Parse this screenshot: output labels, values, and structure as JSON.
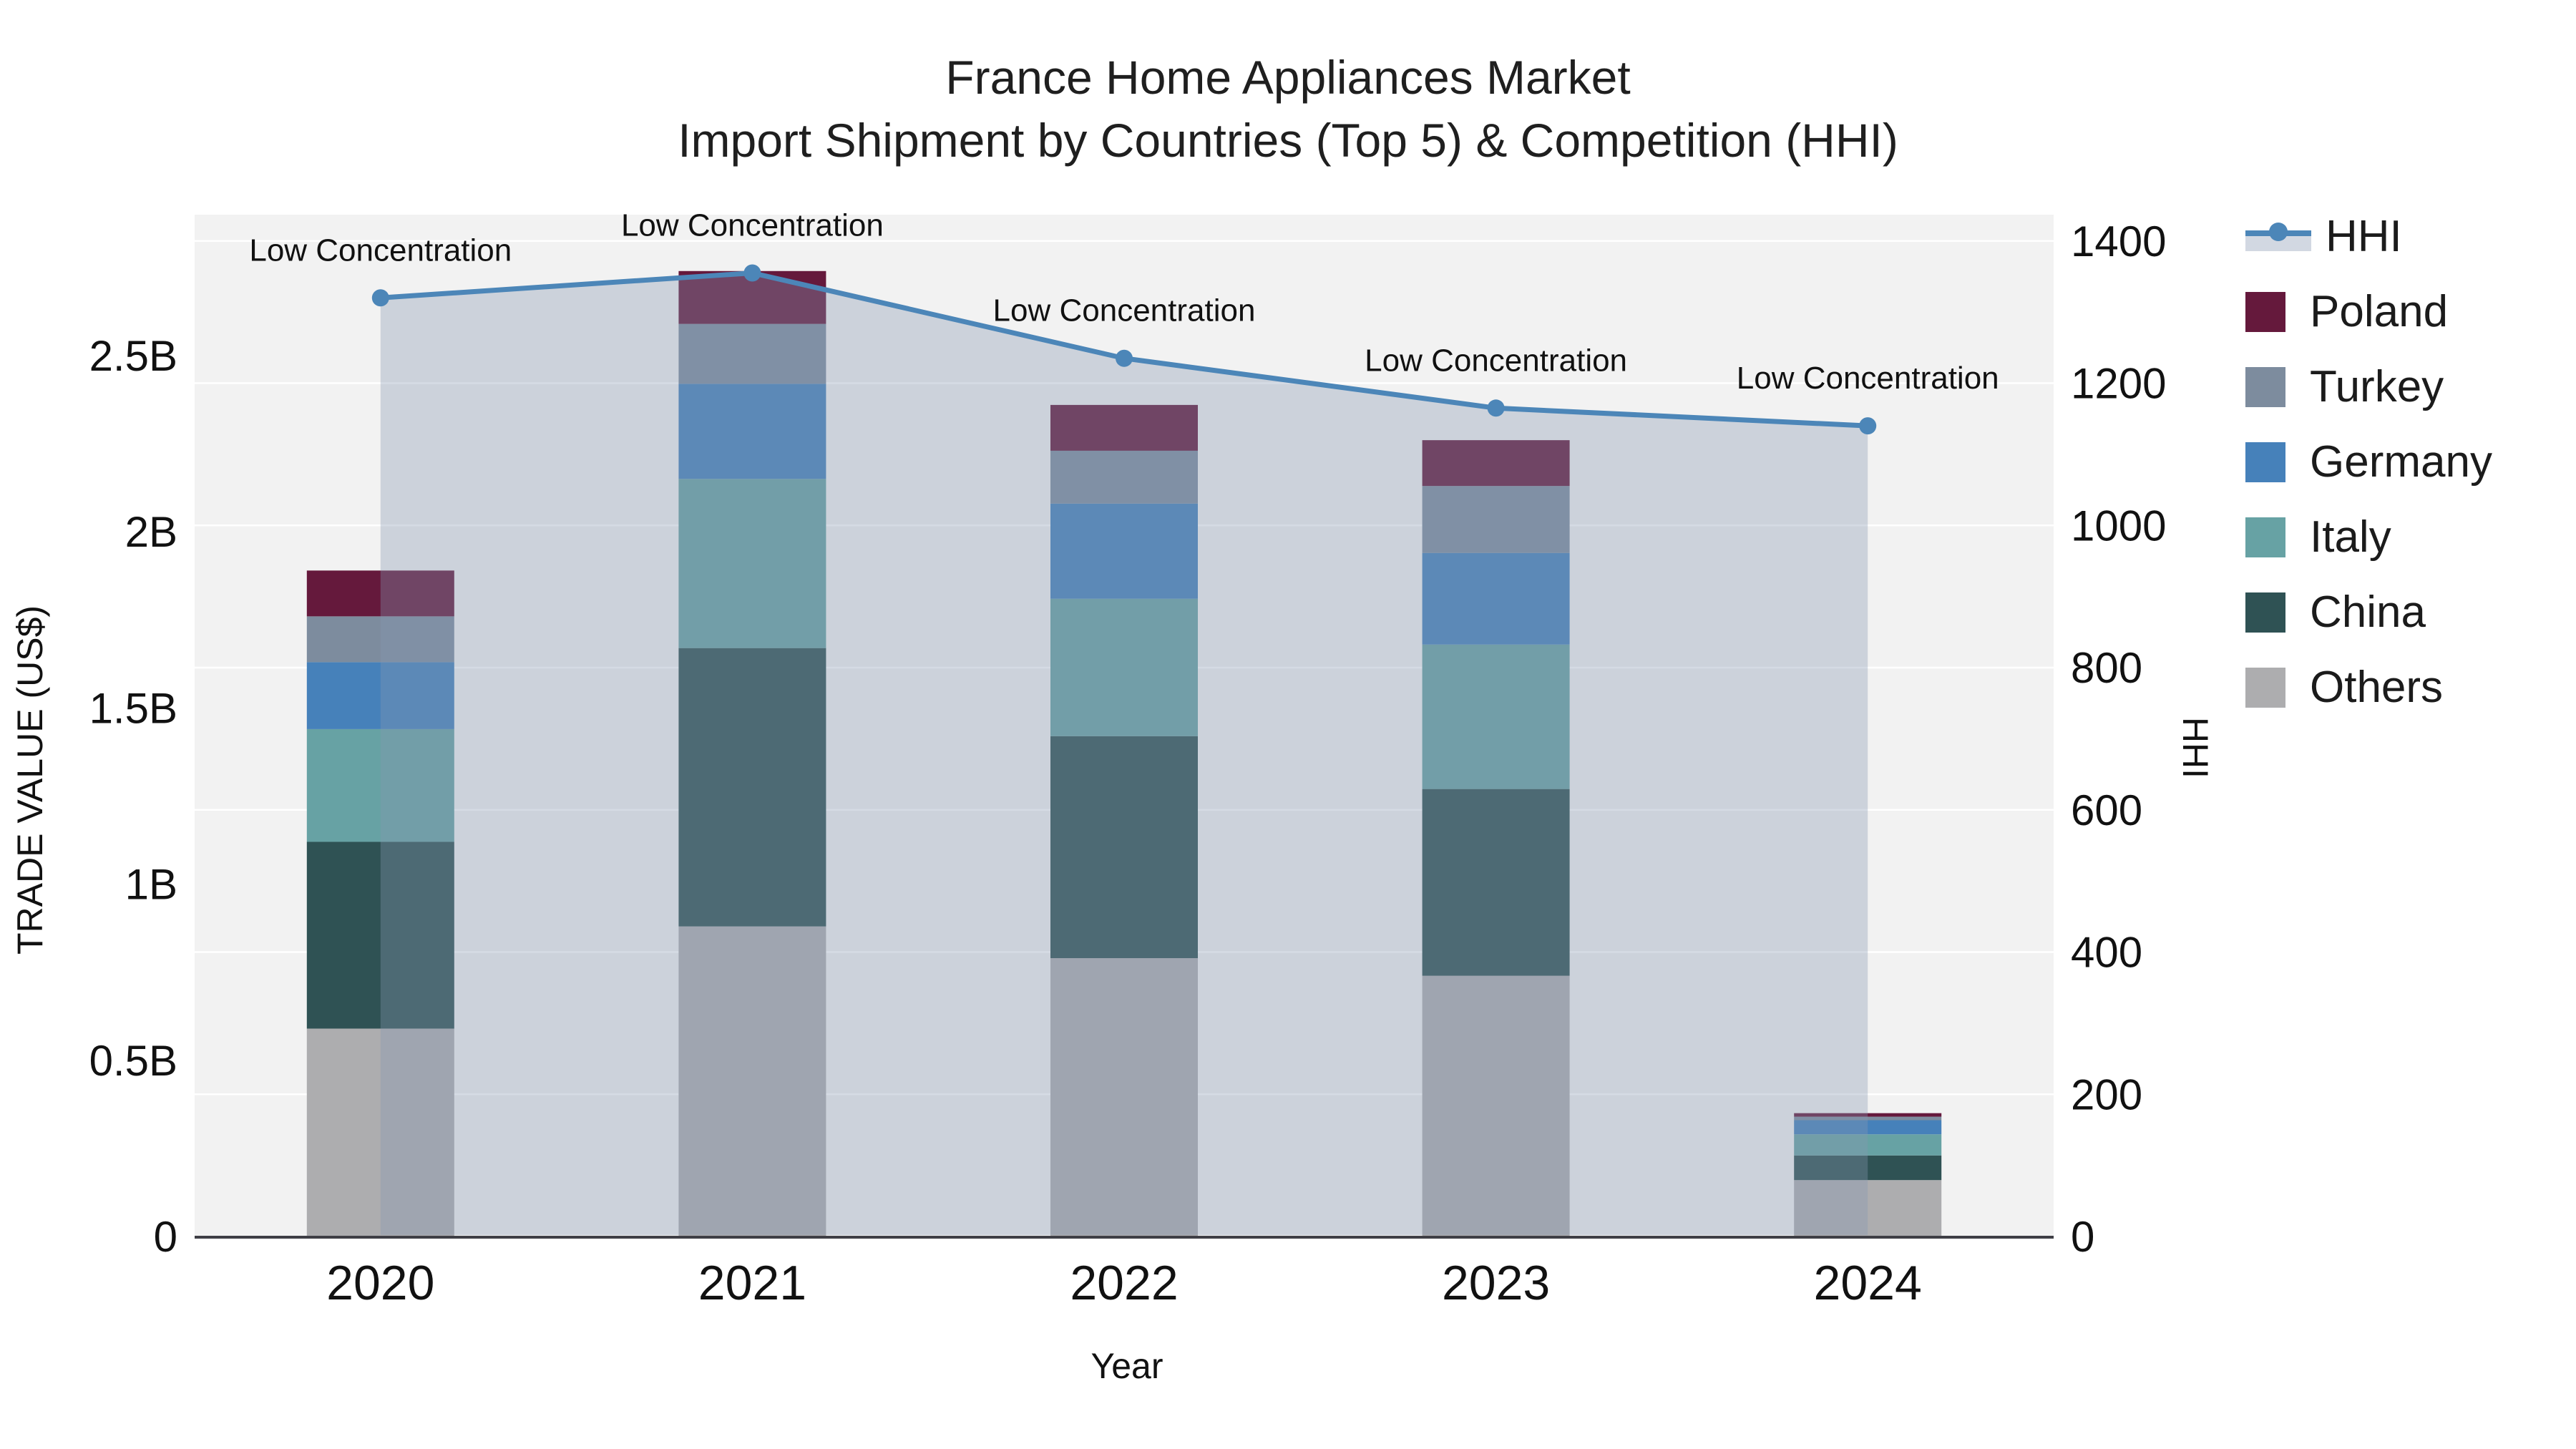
{
  "title": {
    "line1": "France Home Appliances Market",
    "line2": "Import Shipment by Countries (Top 5) & Competition (HHI)"
  },
  "axes": {
    "left": {
      "title": "TRADE VALUE (US$)",
      "range": [
        0,
        2.9
      ],
      "ticks": [
        {
          "v": 0,
          "label": "0"
        },
        {
          "v": 0.5,
          "label": "0.5B"
        },
        {
          "v": 1,
          "label": "1B"
        },
        {
          "v": 1.5,
          "label": "1.5B"
        },
        {
          "v": 2,
          "label": "2B"
        },
        {
          "v": 2.5,
          "label": "2.5B"
        }
      ]
    },
    "right": {
      "title": "HHI",
      "range": [
        0,
        1437
      ],
      "ticks": [
        {
          "v": 0,
          "label": "0"
        },
        {
          "v": 200,
          "label": "200"
        },
        {
          "v": 400,
          "label": "400"
        },
        {
          "v": 600,
          "label": "600"
        },
        {
          "v": 800,
          "label": "800"
        },
        {
          "v": 1000,
          "label": "1000"
        },
        {
          "v": 1200,
          "label": "1200"
        },
        {
          "v": 1400,
          "label": "1400"
        }
      ]
    },
    "x": {
      "title": "Year",
      "categories": [
        "2020",
        "2021",
        "2022",
        "2023",
        "2024"
      ]
    }
  },
  "legend": {
    "items": [
      {
        "label": "HHI",
        "kind": "line",
        "color": "#4c86b8",
        "band": "#d2d8e2"
      },
      {
        "label": "Poland",
        "kind": "swatch",
        "color": "#65193c"
      },
      {
        "label": "Turkey",
        "kind": "swatch",
        "color": "#7d8c9e"
      },
      {
        "label": "Germany",
        "kind": "swatch",
        "color": "#4681ba"
      },
      {
        "label": "Italy",
        "kind": "swatch",
        "color": "#67a2a4"
      },
      {
        "label": "China",
        "kind": "swatch",
        "color": "#2f5254"
      },
      {
        "label": "Others",
        "kind": "swatch",
        "color": "#adadaf"
      }
    ]
  },
  "chart_data": {
    "type": "stacked-bar+line",
    "title": "France Home Appliances Market — Import Shipment by Countries (Top 5) & Competition (HHI)",
    "categories": [
      "2020",
      "2021",
      "2022",
      "2023",
      "2024"
    ],
    "value_unit": "billion US$",
    "stack_order_bottom_to_top": [
      "Others",
      "China",
      "Italy",
      "Germany",
      "Turkey",
      "Poland"
    ],
    "series": [
      {
        "name": "Poland",
        "color": "#65193c",
        "values": [
          0.13,
          0.15,
          0.13,
          0.13,
          0.01
        ]
      },
      {
        "name": "Turkey",
        "color": "#7d8c9e",
        "values": [
          0.13,
          0.17,
          0.15,
          0.19,
          0.01
        ]
      },
      {
        "name": "Germany",
        "color": "#4681ba",
        "values": [
          0.19,
          0.27,
          0.27,
          0.26,
          0.04
        ]
      },
      {
        "name": "Italy",
        "color": "#67a2a4",
        "values": [
          0.32,
          0.48,
          0.39,
          0.41,
          0.06
        ]
      },
      {
        "name": "China",
        "color": "#2f5254",
        "values": [
          0.53,
          0.79,
          0.63,
          0.53,
          0.07
        ]
      },
      {
        "name": "Others",
        "color": "#adadaf",
        "values": [
          0.59,
          0.88,
          0.79,
          0.74,
          0.16
        ]
      }
    ],
    "bar_totals": [
      1.89,
      2.74,
      2.36,
      2.26,
      0.35
    ],
    "line_series": {
      "name": "HHI",
      "axis": "right",
      "color": "#4c86b8",
      "fill_color": "rgba(136,151,179,0.35)",
      "values": [
        1320,
        1355,
        1235,
        1165,
        1140
      ]
    },
    "annotations": [
      {
        "category": "2020",
        "text": "Low Concentration"
      },
      {
        "category": "2021",
        "text": "Low Concentration"
      },
      {
        "category": "2022",
        "text": "Low Concentration"
      },
      {
        "category": "2023",
        "text": "Low Concentration"
      },
      {
        "category": "2024",
        "text": "Low Concentration"
      }
    ],
    "layout_hints": {
      "plot_bg": "#f2f2f2",
      "grid": "right-axis step 200, white",
      "legend_position": "right",
      "axis_line_color": "#3f3f46"
    }
  }
}
